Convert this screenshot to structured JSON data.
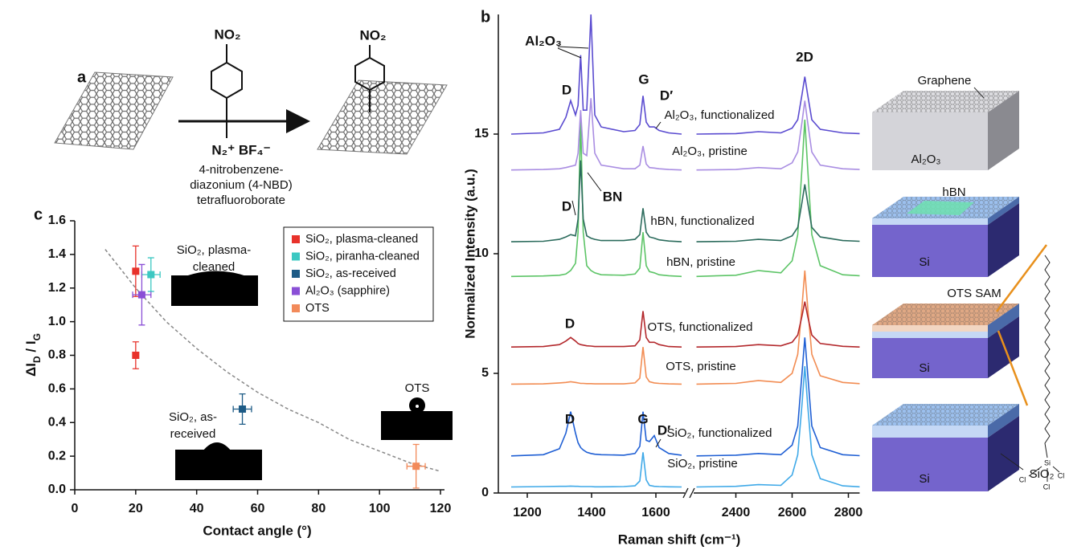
{
  "scheme": {
    "label": "a",
    "reagent_group": "NO₂",
    "reagent_ion": "N₂⁺ BF₄⁻",
    "product_group": "NO₂",
    "caption": [
      "4-nitrobenzene-",
      "diazonium (4-NBD)",
      "tetrafluoroborate"
    ]
  },
  "schematic": {
    "labels": [
      "Graphene",
      "Al₂O₃",
      "hBN",
      "Si",
      "OTS SAM",
      "Si",
      "SiO₂",
      "Si"
    ],
    "molecule": [
      "Si",
      "Cl",
      "Cl",
      "Cl"
    ]
  },
  "chart_data": [
    {
      "type": "line",
      "label": "b",
      "xlabel": "Raman shift (cm⁻¹)",
      "ylabel": "Normalized Intensity (a.u.)",
      "broken_x": true,
      "xlims": [
        [
          1110,
          1690
        ],
        [
          2250,
          2840
        ]
      ],
      "ylim": [
        0,
        20
      ],
      "xticks": [
        1200,
        1400,
        1600,
        2400,
        2600,
        2800
      ],
      "yticks": [
        0,
        5,
        10,
        15
      ],
      "x": [
        1150,
        1250,
        1300,
        1320,
        1335,
        1350,
        1358,
        1366,
        1374,
        1385,
        1398,
        1410,
        1430,
        1500,
        1535,
        1550,
        1560,
        1570,
        1580,
        1595,
        1610,
        1640,
        1680,
        null,
        2260,
        2400,
        2480,
        2560,
        2600,
        2620,
        2635,
        2645,
        2655,
        2670,
        2700,
        2780,
        2840
      ],
      "series": [
        {
          "name": "SiO₂, pristine",
          "color": "#3fa9e8",
          "values": [
            0.25,
            0.27,
            0.28,
            0.28,
            0.29,
            0.28,
            0.28,
            0.27,
            0.27,
            0.27,
            0.27,
            0.26,
            0.26,
            0.27,
            0.3,
            0.5,
            1.7,
            0.55,
            0.32,
            0.28,
            0.27,
            0.26,
            0.25,
            null,
            0.25,
            0.28,
            0.35,
            0.32,
            0.75,
            1.6,
            3.7,
            5.3,
            3.7,
            1.6,
            0.6,
            0.3,
            0.26
          ]
        },
        {
          "name": "SiO₂, functionalized",
          "color": "#1f5fd4",
          "values": [
            1.55,
            1.6,
            1.85,
            2.5,
            3.4,
            2.5,
            2.1,
            1.9,
            1.8,
            1.7,
            1.65,
            1.62,
            1.6,
            1.58,
            1.65,
            1.95,
            3.4,
            2.2,
            2.15,
            2.4,
            1.9,
            1.65,
            1.58,
            null,
            1.55,
            1.58,
            1.65,
            1.6,
            2.0,
            2.8,
            5.0,
            6.5,
            5.0,
            2.8,
            1.9,
            1.6,
            1.56
          ]
        },
        {
          "name": "OTS, pristine",
          "color": "#f28c52",
          "values": [
            4.55,
            4.56,
            4.6,
            4.62,
            4.65,
            4.62,
            4.6,
            4.58,
            4.58,
            4.57,
            4.57,
            4.56,
            4.56,
            4.56,
            4.6,
            4.8,
            6.1,
            4.85,
            4.65,
            4.6,
            4.58,
            4.56,
            4.55,
            null,
            4.55,
            4.58,
            4.7,
            4.62,
            5.0,
            5.8,
            7.8,
            9.3,
            7.8,
            5.8,
            4.9,
            4.62,
            4.57
          ]
        },
        {
          "name": "OTS, functionalized",
          "color": "#b3282c",
          "values": [
            6.1,
            6.12,
            6.2,
            6.35,
            6.5,
            6.35,
            6.25,
            6.2,
            6.18,
            6.15,
            6.14,
            6.12,
            6.12,
            6.12,
            6.15,
            6.4,
            7.6,
            6.5,
            6.3,
            6.3,
            6.2,
            6.12,
            6.1,
            null,
            6.1,
            6.12,
            6.2,
            6.15,
            6.3,
            6.6,
            7.4,
            8.0,
            7.4,
            6.6,
            6.25,
            6.13,
            6.1
          ]
        },
        {
          "name": "hBN, pristine",
          "color": "#5cc466",
          "values": [
            9.05,
            9.07,
            9.1,
            9.15,
            9.3,
            9.6,
            10.9,
            15.6,
            10.9,
            9.5,
            9.3,
            9.2,
            9.12,
            9.1,
            9.15,
            9.4,
            10.9,
            9.5,
            9.25,
            9.2,
            9.12,
            9.08,
            9.05,
            null,
            9.05,
            9.1,
            9.3,
            9.2,
            9.7,
            10.8,
            13.6,
            15.6,
            13.6,
            10.8,
            9.5,
            9.12,
            9.08
          ]
        },
        {
          "name": "hBN, functionalized",
          "color": "#2b6b5c",
          "values": [
            10.5,
            10.52,
            10.6,
            10.7,
            10.8,
            10.75,
            11.45,
            13.9,
            11.45,
            10.75,
            10.65,
            10.6,
            10.55,
            10.55,
            10.6,
            10.8,
            11.9,
            10.9,
            10.7,
            10.65,
            10.58,
            10.53,
            10.5,
            null,
            10.5,
            10.52,
            10.6,
            10.55,
            10.75,
            11.1,
            12.15,
            12.9,
            12.15,
            11.1,
            10.7,
            10.55,
            10.52
          ]
        },
        {
          "name": "Al₂O₃, pristine",
          "color": "#a98de2",
          "values": [
            13.5,
            13.52,
            13.55,
            13.6,
            13.65,
            13.7,
            14.2,
            16.0,
            14.2,
            14.1,
            16.5,
            14.2,
            13.7,
            13.55,
            13.55,
            13.7,
            14.5,
            13.75,
            13.6,
            13.58,
            13.55,
            13.52,
            13.5,
            null,
            13.5,
            13.52,
            13.6,
            13.55,
            13.8,
            14.25,
            15.5,
            16.4,
            15.5,
            14.25,
            13.7,
            13.55,
            13.52
          ]
        },
        {
          "name": "Al₂O₃, functionalized",
          "color": "#5a4bd0",
          "values": [
            15.0,
            15.05,
            15.2,
            15.7,
            16.4,
            15.8,
            16.2,
            18.3,
            16.0,
            16.0,
            20.0,
            15.8,
            15.3,
            15.1,
            15.15,
            15.4,
            16.6,
            15.5,
            15.3,
            15.3,
            15.15,
            15.05,
            15.0,
            null,
            15.0,
            15.02,
            15.1,
            15.05,
            15.25,
            15.6,
            16.65,
            17.4,
            16.65,
            15.6,
            15.2,
            15.05,
            15.02
          ]
        }
      ],
      "annotations": [
        "Al₂O₃",
        "D",
        "G",
        "D′",
        "2D",
        "D",
        "BN",
        "D",
        "D",
        "G",
        "D′"
      ]
    },
    {
      "type": "scatter",
      "label": "c",
      "xlabel": "Contact angle (°)",
      "ylabel": [
        "ΔI",
        "D",
        " / I",
        "G"
      ],
      "xlim": [
        0,
        120
      ],
      "ylim": [
        0,
        1.6
      ],
      "xticks": [
        0,
        20,
        40,
        60,
        80,
        100,
        120
      ],
      "yticks": [
        {
          "value": 0,
          "label": "0.0"
        },
        0.2,
        0.4,
        0.6,
        0.8,
        {
          "value": 1,
          "label": "1.0"
        },
        1.2,
        1.4,
        1.6
      ],
      "legend": "upper right",
      "series": [
        {
          "name": "SiO₂, plasma-cleaned",
          "color": "#e8322b",
          "x": [
            20,
            20
          ],
          "values": [
            1.3,
            0.8
          ],
          "yerr": [
            0.15,
            0.08
          ]
        },
        {
          "name": "SiO₂, piranha-cleaned",
          "color": "#3cc8c2",
          "x": [
            25
          ],
          "values": [
            1.28
          ],
          "yerr": [
            0.1
          ],
          "xerr": [
            3
          ]
        },
        {
          "name": "SiO₂, as-received",
          "color": "#1d5b86",
          "x": [
            55
          ],
          "values": [
            0.48
          ],
          "yerr": [
            0.09
          ],
          "xerr": [
            3
          ]
        },
        {
          "name": "Al₂O₃ (sapphire)",
          "color": "#8a4fd6",
          "x": [
            22
          ],
          "values": [
            1.16
          ],
          "yerr": [
            0.18
          ],
          "xerr": [
            3
          ]
        },
        {
          "name": "OTS",
          "color": "#f28a5a",
          "x": [
            112
          ],
          "values": [
            0.14
          ],
          "yerr": [
            0.13
          ],
          "xerr": [
            3
          ]
        }
      ],
      "fit": {
        "color": "#888888",
        "x": [
          10,
          20,
          30,
          40,
          50,
          60,
          70,
          80,
          90,
          100,
          110,
          120
        ],
        "values": [
          1.43,
          1.2,
          1.0,
          0.84,
          0.7,
          0.58,
          0.48,
          0.4,
          0.3,
          0.23,
          0.16,
          0.11
        ]
      },
      "annotations": [
        "SiO₂, plasma-",
        "cleaned",
        "SiO₂, as-",
        "received",
        "OTS"
      ]
    }
  ]
}
